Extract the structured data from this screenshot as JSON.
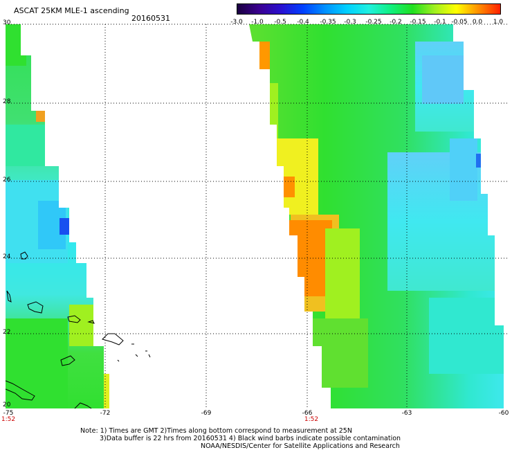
{
  "header": {
    "title": "ASCAT 25KM MLE-1 ascending",
    "date": "20160531"
  },
  "colorbar": {
    "labels": [
      "-3.0",
      "-1.0",
      "-0.5",
      "-0.4",
      "-0.35",
      "-0.3",
      "-0.25",
      "-0.2",
      "-0.15",
      "-0.1",
      "-0.05",
      "0.0",
      "1.0"
    ],
    "colors": [
      "#1a0040",
      "#3a0090",
      "#2a10d0",
      "#0040ff",
      "#0090ff",
      "#00d0ff",
      "#20f0e0",
      "#10f080",
      "#20e020",
      "#a0f020",
      "#ffff00",
      "#ff9000",
      "#ff2000"
    ]
  },
  "map": {
    "lat_labels": [
      "30",
      "28",
      "26",
      "24",
      "22",
      "20"
    ],
    "lon_labels": [
      "-75",
      "-72",
      "-69",
      "-66",
      "-63",
      "-60"
    ],
    "pass_times": [
      "1:52",
      "1:52"
    ]
  },
  "notes": [
    "Note: 1) Times are GMT 2)Times along bottom correspond to measurement at 25N",
    "3)Data buffer is 22 hrs from 20160531 4) Black wind barbs indicate possible contamination",
    "NOAA/NESDIS/Center for Satellite Applications and Research"
  ]
}
